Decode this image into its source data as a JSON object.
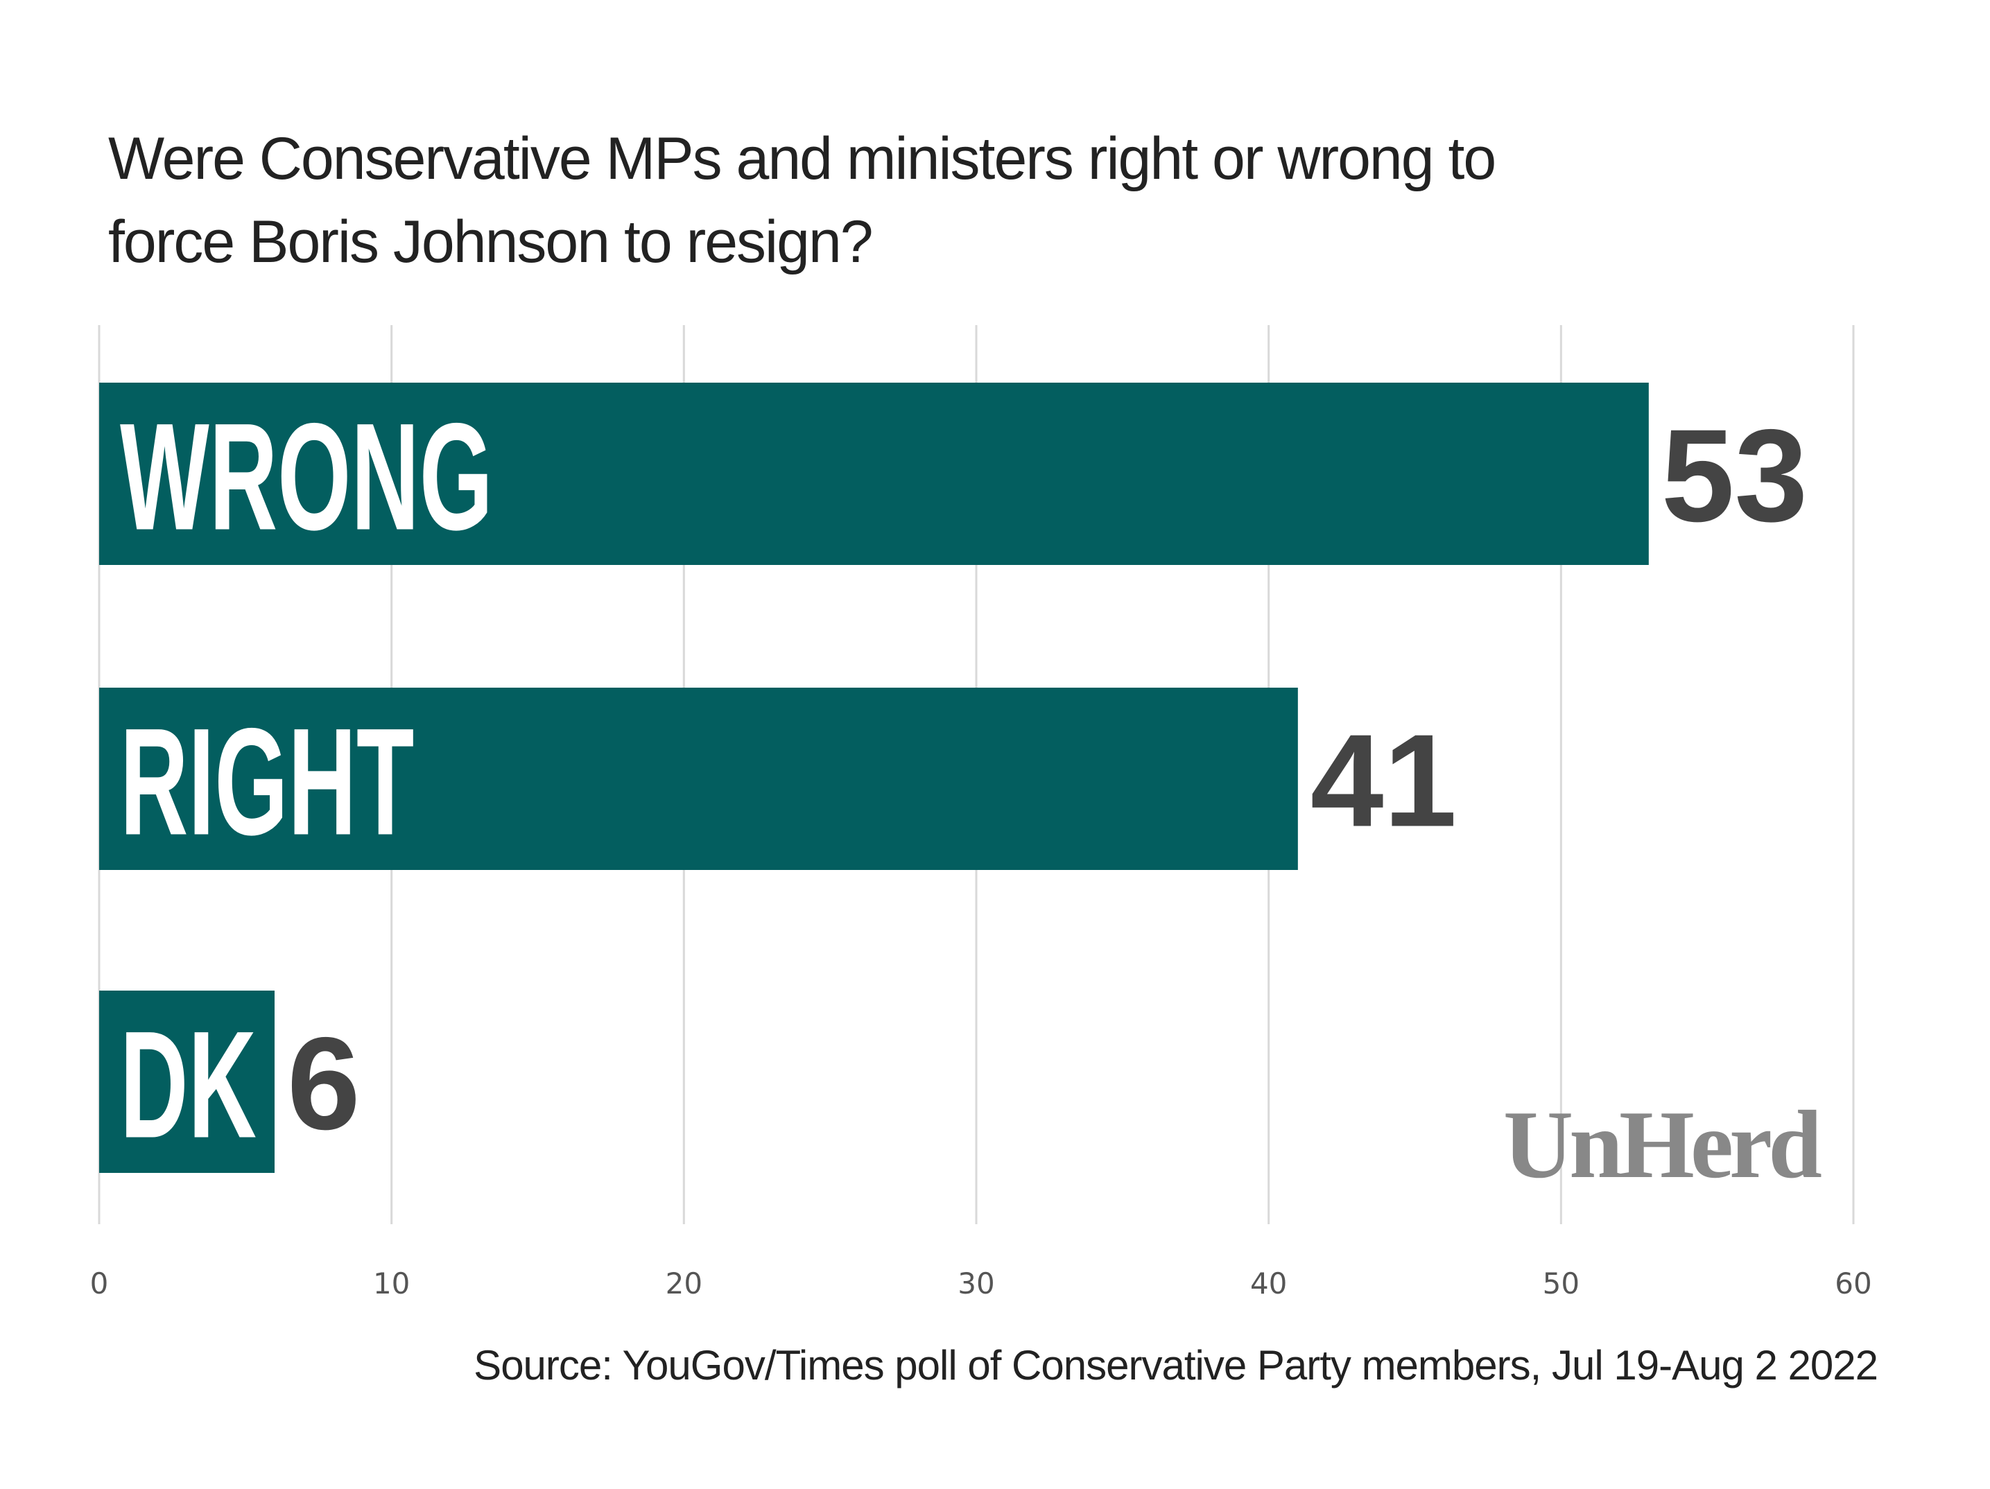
{
  "chart_data": {
    "type": "bar",
    "orientation": "horizontal",
    "title": "Were Conservative MPs and ministers right or wrong to force Boris Johnson to resign?",
    "title_lines": [
      "Were Conservative MPs and ministers right or wrong to",
      "force Boris Johnson to resign?"
    ],
    "categories": [
      "WRONG",
      "RIGHT",
      "DK"
    ],
    "values": [
      53,
      41,
      6
    ],
    "value_labels": [
      "53",
      "41",
      "6"
    ],
    "xlim": [
      0,
      60
    ],
    "xticks": [
      0,
      10,
      20,
      30,
      40,
      50,
      60
    ],
    "xtick_labels": [
      "0",
      "10",
      "20",
      "30",
      "40",
      "50",
      "60"
    ],
    "xlabel": "",
    "ylabel": "",
    "grid": true,
    "bar_color": "#035e5f",
    "value_color": "#444444",
    "source": "Source: YouGov/Times poll of  Conservative Party members, Jul 19-Aug 2 2022",
    "logo": "UnHerd"
  }
}
